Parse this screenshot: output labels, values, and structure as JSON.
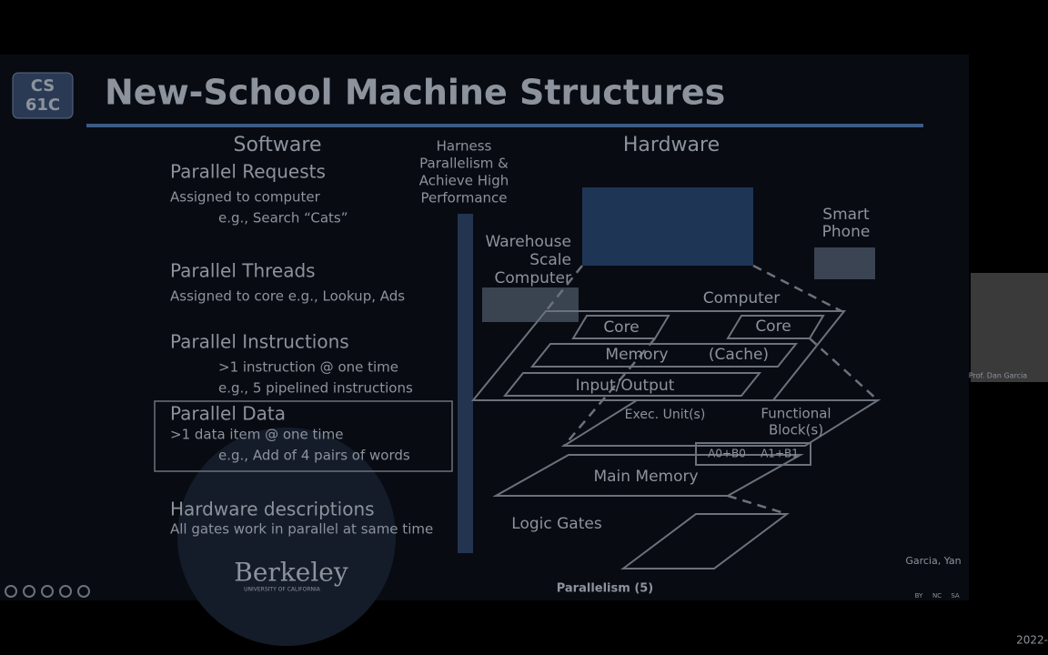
{
  "logo": [
    "CS",
    "61C"
  ],
  "title": "New-School Machine Structures",
  "software": {
    "heading": "Software",
    "items": [
      {
        "title": "Parallel Requests",
        "lines": [
          "Assigned to computer",
          "e.g., Search “Cats”"
        ]
      },
      {
        "title": "Parallel Threads",
        "lines": [
          "Assigned to core e.g., Lookup, Ads"
        ]
      },
      {
        "title": "Parallel Instructions",
        "lines": [
          ">1 instruction @ one time",
          "e.g., 5 pipelined instructions"
        ]
      },
      {
        "title": "Parallel Data",
        "lines": [
          ">1 data item @ one time",
          "e.g., Add of 4 pairs of words"
        ]
      },
      {
        "title": "Hardware descriptions",
        "lines": [
          "All gates work in parallel at same time"
        ]
      }
    ]
  },
  "center": [
    "Harness",
    "Parallelism &",
    "Achieve High",
    "Performance"
  ],
  "hardware": {
    "heading": "Hardware",
    "warehouse": [
      "Warehouse",
      "Scale",
      "Computer"
    ],
    "phone": [
      "Smart",
      "Phone"
    ],
    "computer": "Computer",
    "core": [
      "Core",
      "Core"
    ],
    "memory": "Memory",
    "cache": "(Cache)",
    "io": "Input/Output",
    "exec": "Exec. Unit(s)",
    "functional": [
      "Functional",
      "Block(s)"
    ],
    "adders": [
      "A0+B0",
      "A1+B1"
    ],
    "main_memory": "Main Memory",
    "logic_gates": "Logic Gates"
  },
  "footer": {
    "berkeley": "Berkeley",
    "university": "UNIVERSITY OF CALIFORNIA",
    "slide": "Parallelism (5)",
    "authors": "Garcia, Yan",
    "license": [
      "BY",
      "NC",
      "SA"
    ]
  },
  "webcam_label": "Prof. Dan Garcia",
  "timestamp": "2022-"
}
